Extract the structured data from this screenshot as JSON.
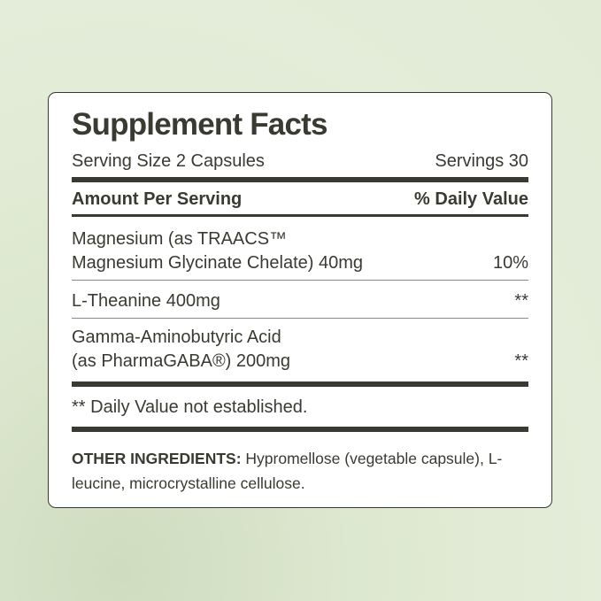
{
  "label": {
    "title": "Supplement Facts",
    "serving_size": "Serving Size 2 Capsules",
    "servings": "Servings 30",
    "amount_header": "Amount Per Serving",
    "dv_header": "% Daily Value",
    "ingredients": [
      {
        "line1": "Magnesium (as TRAACS™",
        "line2": "Magnesium Glycinate Chelate) 40mg",
        "dv": "10%"
      },
      {
        "line1": "L-Theanine 400mg",
        "dv": "**"
      },
      {
        "line1": "Gamma-Aminobutyric Acid",
        "line2": "(as PharmaGABA®) 200mg",
        "dv": "**"
      }
    ],
    "footnote": "** Daily Value not established.",
    "other_label": "OTHER INGREDIENTS:",
    "other_text": " Hypromellose (vegetable capsule), L-leucine, microcrystalline cellulose."
  },
  "colors": {
    "text": "#3a3a33",
    "background": "#e1ebd6",
    "panel": "#ffffff"
  }
}
